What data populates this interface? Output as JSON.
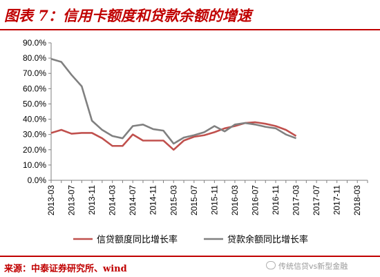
{
  "title": "图表 7：信用卡额度和贷款余额的增速",
  "source": "来源：中泰证券研究所、wind",
  "watermark": "传统信贷vs新型金融",
  "colors": {
    "accent": "#c00000",
    "series1": "#c0504d",
    "series2": "#808080"
  },
  "chart_data": {
    "type": "line",
    "x": [
      "2013-03",
      "2013-05",
      "2013-07",
      "2013-09",
      "2013-11",
      "2014-01",
      "2014-03",
      "2014-05",
      "2014-07",
      "2014-09",
      "2014-11",
      "2015-01",
      "2015-03",
      "2015-05",
      "2015-07",
      "2015-09",
      "2015-11",
      "2016-01",
      "2016-03",
      "2016-05",
      "2016-07",
      "2016-09",
      "2016-11",
      "2017-01",
      "2017-03",
      "2017-05",
      "2017-07",
      "2017-09",
      "2017-11",
      "2018-01",
      "2018-03",
      "2018-05"
    ],
    "xticks": [
      "2013-03",
      "2013-07",
      "2013-11",
      "2014-03",
      "2014-07",
      "2014-11",
      "2015-03",
      "2015-07",
      "2015-11",
      "2016-03",
      "2016-07",
      "2016-11",
      "2017-03",
      "2017-07",
      "2017-11",
      "2018-03"
    ],
    "yticks": [
      "0.0%",
      "10.0%",
      "20.0%",
      "30.0%",
      "40.0%",
      "50.0%",
      "60.0%",
      "70.0%",
      "80.0%",
      "90.0%"
    ],
    "ylim": [
      0,
      90
    ],
    "series": [
      {
        "name": "信贷额度同比增长率",
        "values": [
          31.0,
          33.0,
          30.5,
          31.0,
          31.0,
          27.5,
          22.5,
          22.5,
          30.0,
          26.0,
          26.0,
          26.0,
          20.0,
          26.0,
          28.5,
          29.5,
          31.5,
          34.0,
          35.5,
          37.5,
          38.0,
          37.0,
          35.5,
          33.0,
          29.0,
          null,
          null,
          null,
          null,
          null,
          null,
          null
        ]
      },
      {
        "name": "贷款余额同比增长率",
        "values": [
          79.5,
          77.5,
          69.0,
          61.5,
          39.0,
          33.0,
          29.0,
          27.5,
          35.5,
          36.5,
          33.5,
          32.5,
          24.0,
          28.0,
          29.5,
          31.5,
          35.5,
          32.0,
          36.5,
          37.5,
          36.5,
          35.0,
          34.0,
          30.0,
          27.5,
          null,
          null,
          null,
          null,
          null,
          null,
          null
        ]
      }
    ],
    "legend": "bottom",
    "grid": false
  }
}
